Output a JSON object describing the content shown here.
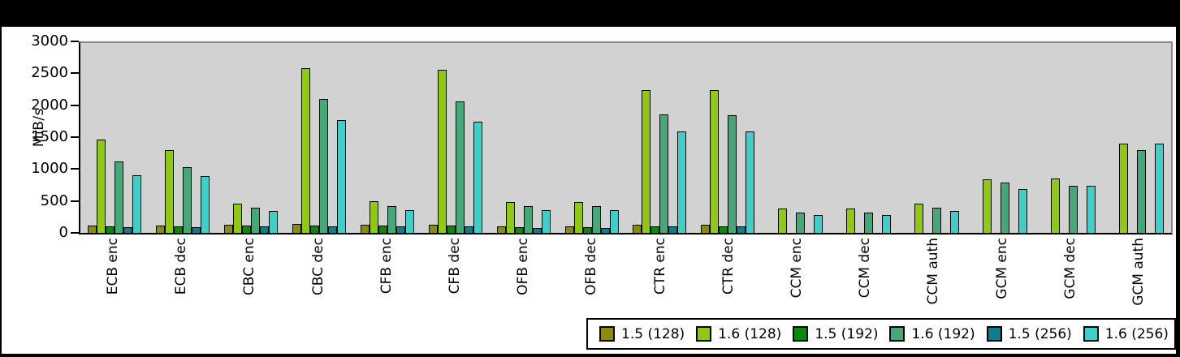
{
  "window": {
    "background_color": "#000000",
    "top_band_height": 33,
    "canvas_background": "#ffffff"
  },
  "chart_data": {
    "type": "bar",
    "title": "",
    "ylabel": "MiB/s",
    "xlabel": "",
    "ylim": [
      0,
      3000
    ],
    "yticks": [
      0,
      500,
      1000,
      1500,
      2000,
      2500,
      3000
    ],
    "grid": false,
    "plot_background": "#d2d2d2",
    "legend_position": "bottom-right",
    "categories": [
      "ECB enc",
      "ECB dec",
      "CBC enc",
      "CBC dec",
      "CFB enc",
      "CFB dec",
      "OFB enc",
      "OFB dec",
      "CTR enc",
      "CTR dec",
      "CCM enc",
      "CCM dec",
      "CCM auth",
      "GCM enc",
      "GCM dec",
      "GCM auth"
    ],
    "series": [
      {
        "name": "1.5 (128)",
        "color": "#8B8B0E",
        "values": [
          100,
          100,
          115,
          125,
          110,
          110,
          90,
          90,
          110,
          110,
          0,
          0,
          0,
          0,
          0,
          0
        ]
      },
      {
        "name": "1.6 (128)",
        "color": "#90C813",
        "values": [
          1465,
          1300,
          455,
          2590,
          490,
          2565,
          480,
          480,
          2240,
          2240,
          370,
          370,
          445,
          835,
          850,
          1400
        ]
      },
      {
        "name": "1.5 (192)",
        "color": "#0A8A0A",
        "values": [
          90,
          90,
          100,
          105,
          100,
          100,
          80,
          80,
          95,
          95,
          0,
          0,
          0,
          0,
          0,
          0
        ]
      },
      {
        "name": "1.6 (192)",
        "color": "#45A878",
        "values": [
          1115,
          1030,
          390,
          2105,
          415,
          2065,
          410,
          410,
          1865,
          1840,
          310,
          310,
          390,
          780,
          725,
          1300
        ]
      },
      {
        "name": "1.5 (256)",
        "color": "#0E7E8C",
        "values": [
          75,
          75,
          85,
          95,
          90,
          90,
          65,
          65,
          85,
          85,
          0,
          0,
          0,
          0,
          0,
          0
        ]
      },
      {
        "name": "1.6 (256)",
        "color": "#3ED0C8",
        "values": [
          900,
          880,
          335,
          1775,
          350,
          1740,
          340,
          345,
          1590,
          1590,
          265,
          265,
          330,
          680,
          735,
          1395
        ]
      }
    ]
  }
}
